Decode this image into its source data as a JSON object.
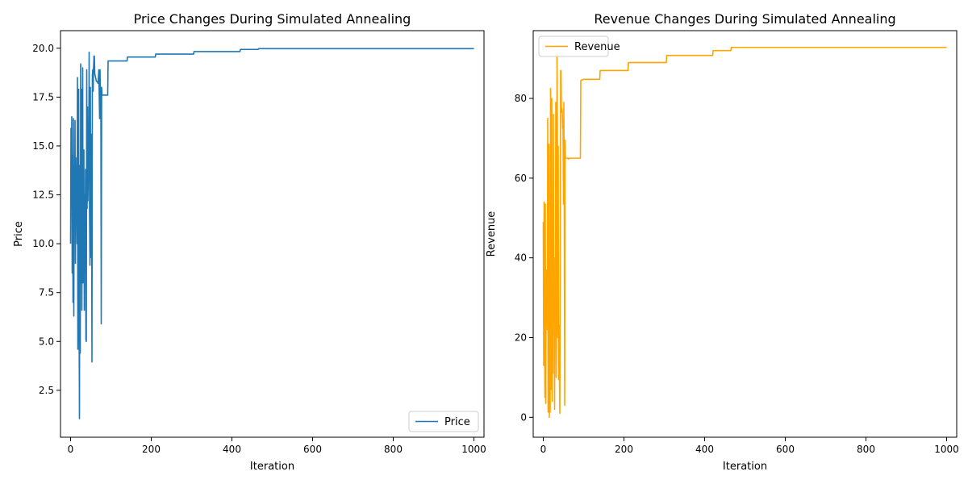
{
  "chart_data": [
    {
      "type": "line",
      "title": "Price Changes During Simulated Annealing",
      "xlabel": "Iteration",
      "ylabel": "Price",
      "xlim": [
        -25,
        1025
      ],
      "ylim": [
        0.1,
        20.9
      ],
      "x_ticks": [
        0,
        200,
        400,
        600,
        800,
        1000
      ],
      "y_ticks": [
        2.5,
        5.0,
        7.5,
        10.0,
        12.5,
        15.0,
        17.5,
        20.0
      ],
      "x_tick_labels": [
        "0",
        "200",
        "400",
        "600",
        "800",
        "1000"
      ],
      "y_tick_labels": [
        "2.5",
        "5.0",
        "7.5",
        "10.0",
        "12.5",
        "15.0",
        "17.5",
        "20.0"
      ],
      "grid": false,
      "legend_position": "lower-right",
      "series": [
        {
          "name": "Price",
          "color": "#1f77b4",
          "points": [
            [
              0,
              10.0
            ],
            [
              1,
              15.9
            ],
            [
              2,
              13.5
            ],
            [
              3,
              16.5
            ],
            [
              4,
              8.5
            ],
            [
              5,
              14.5
            ],
            [
              6,
              7.0
            ],
            [
              7,
              16.4
            ],
            [
              8,
              6.3
            ],
            [
              9,
              14.0
            ],
            [
              10,
              11.0
            ],
            [
              11,
              16.3
            ],
            [
              12,
              9.0
            ],
            [
              13,
              14.4
            ],
            [
              14,
              12.5
            ],
            [
              15,
              12.0
            ],
            [
              16,
              10.0
            ],
            [
              17,
              18.5
            ],
            [
              18,
              4.6
            ],
            [
              19,
              11.5
            ],
            [
              20,
              17.9
            ],
            [
              21,
              6.5
            ],
            [
              22,
              1.05
            ],
            [
              23,
              14.0
            ],
            [
              24,
              4.4
            ],
            [
              25,
              19.2
            ],
            [
              26,
              8.0
            ],
            [
              27,
              17.9
            ],
            [
              28,
              6.6
            ],
            [
              29,
              13.0
            ],
            [
              30,
              19.0
            ],
            [
              31,
              8.0
            ],
            [
              32,
              12.0
            ],
            [
              33,
              14.8
            ],
            [
              34,
              6.6
            ],
            [
              35,
              12.5
            ],
            [
              36,
              9.0
            ],
            [
              37,
              13.8
            ],
            [
              38,
              5.1
            ],
            [
              39,
              5.0
            ],
            [
              40,
              18.9
            ],
            [
              41,
              11.8
            ],
            [
              42,
              17.0
            ],
            [
              43,
              12.2
            ],
            [
              44,
              13.8
            ],
            [
              45,
              13.5
            ],
            [
              46,
              19.8
            ],
            [
              47,
              11.5
            ],
            [
              48,
              8.9
            ],
            [
              49,
              18.0
            ],
            [
              50,
              9.3
            ],
            [
              51,
              15.6
            ],
            [
              52,
              13.9
            ],
            [
              53,
              3.95
            ],
            [
              54,
              18.6
            ],
            [
              55,
              18.9
            ],
            [
              56,
              17.8
            ],
            [
              57,
              19.0
            ],
            [
              58,
              19.6
            ],
            [
              59,
              19.6
            ],
            [
              60,
              18.7
            ],
            [
              61,
              18.6
            ],
            [
              62,
              18.5
            ],
            [
              63,
              18.4
            ],
            [
              64,
              18.3
            ],
            [
              66,
              18.3
            ],
            [
              68,
              18.2
            ],
            [
              70,
              18.9
            ],
            [
              72,
              16.4
            ],
            [
              73,
              18.9
            ],
            [
              74,
              17.2
            ],
            [
              75,
              18.0
            ],
            [
              76,
              5.9
            ],
            [
              77,
              18.0
            ],
            [
              78,
              17.6
            ],
            [
              85,
              17.6
            ],
            [
              92,
              17.6
            ],
            [
              93,
              19.35
            ],
            [
              100,
              19.35
            ],
            [
              140,
              19.35
            ],
            [
              141,
              19.55
            ],
            [
              210,
              19.55
            ],
            [
              211,
              19.7
            ],
            [
              305,
              19.7
            ],
            [
              306,
              19.83
            ],
            [
              420,
              19.83
            ],
            [
              421,
              19.94
            ],
            [
              465,
              19.94
            ],
            [
              466,
              19.98
            ],
            [
              1000,
              19.98
            ]
          ]
        }
      ]
    },
    {
      "type": "line",
      "title": "Revenue Changes During Simulated Annealing",
      "xlabel": "Iteration",
      "ylabel": "Revenue",
      "xlim": [
        -25,
        1025
      ],
      "ylim": [
        -5,
        97
      ],
      "x_ticks": [
        0,
        200,
        400,
        600,
        800,
        1000
      ],
      "y_ticks": [
        0,
        20,
        40,
        60,
        80
      ],
      "x_tick_labels": [
        "0",
        "200",
        "400",
        "600",
        "800",
        "1000"
      ],
      "y_tick_labels": [
        "0",
        "20",
        "40",
        "60",
        "80"
      ],
      "grid": false,
      "legend_position": "top-left",
      "series": [
        {
          "name": "Revenue",
          "color": "#ffa500",
          "points": [
            [
              0,
              49.0
            ],
            [
              1,
              13.0
            ],
            [
              2,
              54.0
            ],
            [
              3,
              30.0
            ],
            [
              4,
              5.0
            ],
            [
              5,
              53.5
            ],
            [
              6,
              3.5
            ],
            [
              7,
              37.0
            ],
            [
              8,
              24.0
            ],
            [
              9,
              34.0
            ],
            [
              10,
              22.0
            ],
            [
              11,
              75.0
            ],
            [
              12,
              1.3
            ],
            [
              13,
              25.0
            ],
            [
              14,
              68.5
            ],
            [
              15,
              0.0
            ],
            [
              16,
              33.0
            ],
            [
              17,
              1.3
            ],
            [
              18,
              82.5
            ],
            [
              19,
              7.0
            ],
            [
              20,
              50.0
            ],
            [
              21,
              80.0
            ],
            [
              22,
              4.0
            ],
            [
              23,
              40.0
            ],
            [
              24,
              11.0
            ],
            [
              25,
              76.0
            ],
            [
              26,
              31.0
            ],
            [
              27,
              40.0
            ],
            [
              28,
              2.0
            ],
            [
              29,
              32.0
            ],
            [
              30,
              21.0
            ],
            [
              31,
              79.0
            ],
            [
              32,
              10.0
            ],
            [
              33,
              26.0
            ],
            [
              34,
              91.0
            ],
            [
              35,
              70.0
            ],
            [
              36,
              20.0
            ],
            [
              37,
              68.0
            ],
            [
              38,
              9.5
            ],
            [
              39,
              23.0
            ],
            [
              40,
              10.0
            ],
            [
              41,
              1.0
            ],
            [
              42,
              33.0
            ],
            [
              43,
              87.0
            ],
            [
              44,
              87.0
            ],
            [
              45,
              76.5
            ],
            [
              46,
              77.5
            ],
            [
              47,
              77.0
            ],
            [
              48,
              72.5
            ],
            [
              49,
              72.5
            ],
            [
              50,
              53.5
            ],
            [
              51,
              79.0
            ],
            [
              52,
              53.0
            ],
            [
              53,
              3.0
            ],
            [
              54,
              69.5
            ],
            [
              55,
              65.0
            ],
            [
              56,
              65.0
            ],
            [
              60,
              65.0
            ],
            [
              61,
              65.0
            ],
            [
              62,
              64.8
            ],
            [
              63,
              65.0
            ],
            [
              64,
              65.0
            ],
            [
              65,
              65.0
            ],
            [
              66,
              65.0
            ],
            [
              67,
              65.0
            ],
            [
              68,
              65.0
            ],
            [
              69,
              65.0
            ],
            [
              70,
              65.0
            ],
            [
              71,
              65.0
            ],
            [
              72,
              65.0
            ],
            [
              73,
              65.0
            ],
            [
              74,
              65.0
            ],
            [
              75,
              65.0
            ],
            [
              76,
              65.0
            ],
            [
              77,
              65.0
            ],
            [
              78,
              65.0
            ],
            [
              80,
              65.0
            ],
            [
              92,
              65.0
            ],
            [
              93,
              84.5
            ],
            [
              100,
              84.8
            ],
            [
              140,
              84.8
            ],
            [
              141,
              87.0
            ],
            [
              210,
              87.0
            ],
            [
              211,
              89.0
            ],
            [
              305,
              89.0
            ],
            [
              306,
              90.8
            ],
            [
              420,
              90.8
            ],
            [
              421,
              92.0
            ],
            [
              465,
              92.0
            ],
            [
              466,
              92.8
            ],
            [
              1000,
              92.8
            ]
          ]
        }
      ]
    }
  ]
}
